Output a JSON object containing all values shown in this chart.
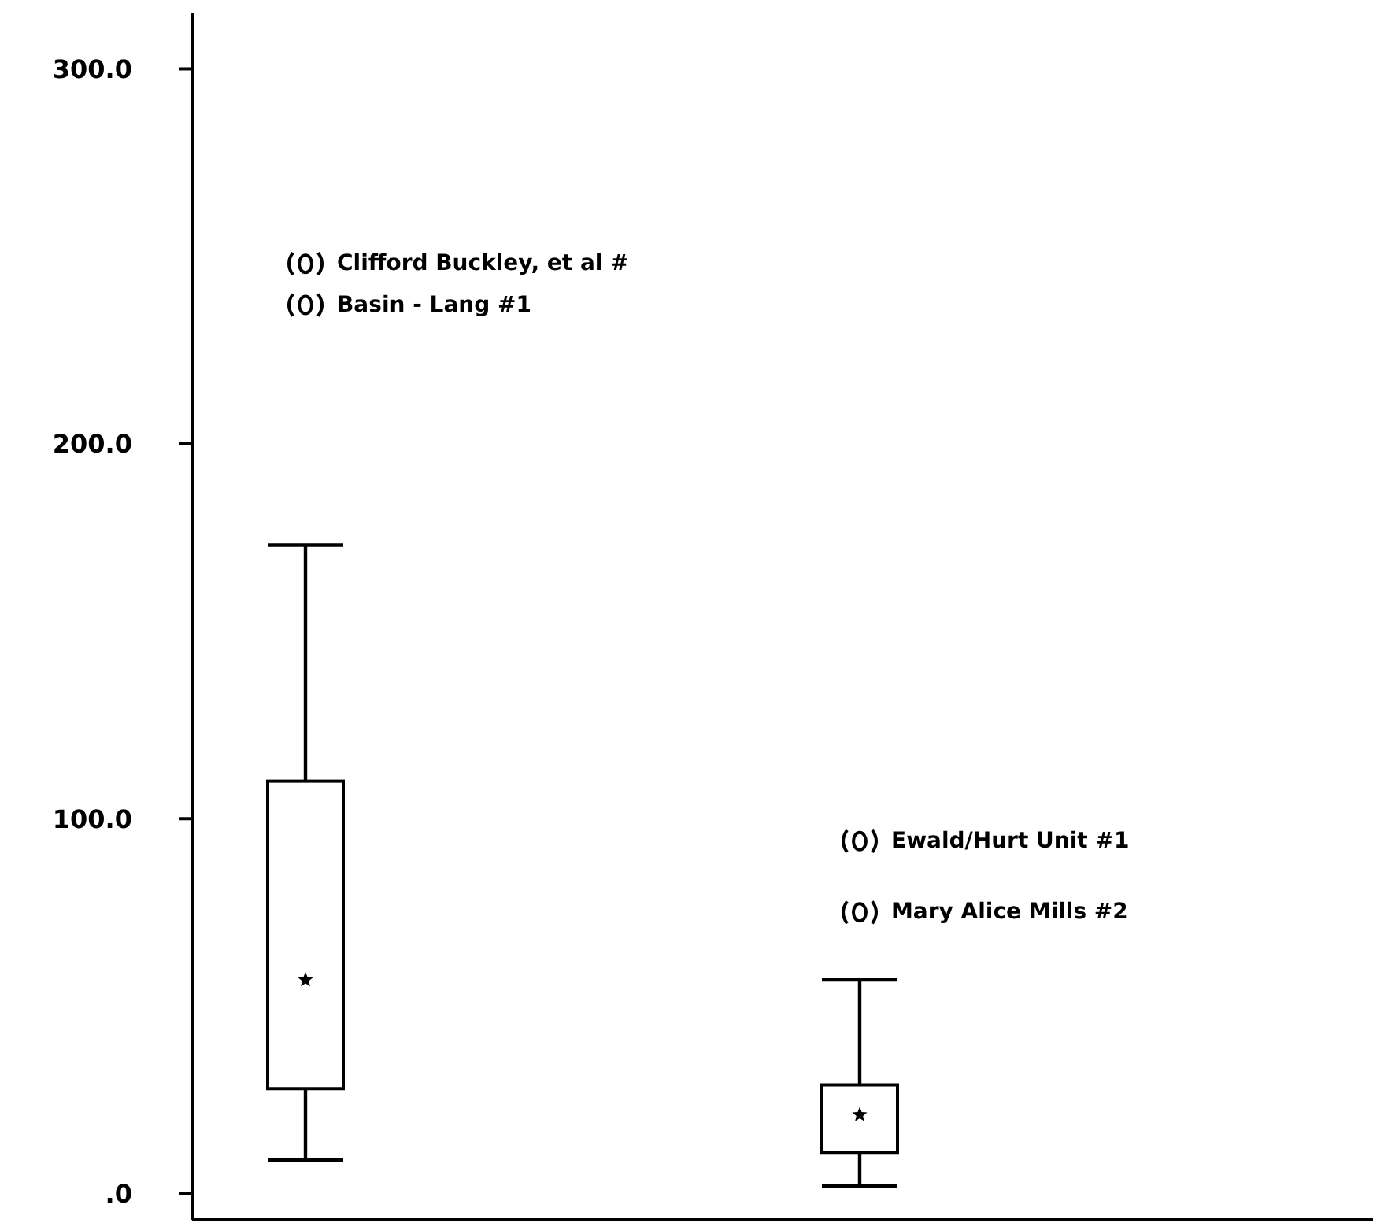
{
  "chart_data": {
    "type": "box",
    "categories": [
      null,
      null
    ],
    "boxes": [
      {
        "low": 9,
        "q1": 28,
        "median": 57,
        "q3": 110,
        "high": 173,
        "outliers": [
          248,
          237
        ]
      },
      {
        "low": 2,
        "q1": 11,
        "median": 21,
        "q3": 29,
        "high": 57,
        "outliers": [
          94,
          75
        ]
      }
    ],
    "color": "#000000",
    "ylim": [
      -7,
      315
    ],
    "yticks": [
      {
        "value": 0,
        "label": ".0"
      },
      {
        "value": 100,
        "label": "100.0"
      },
      {
        "value": 200,
        "label": "200.0"
      },
      {
        "value": 300,
        "label": "300.0"
      }
    ],
    "tick_labels": "y",
    "grid": false,
    "marker": "circle",
    "annotations": [
      "Clifford Buckley, et al #",
      "Basin - Lang #1",
      "Ewald/Hurt Unit #1",
      "Mary Alice Mills #2"
    ]
  }
}
